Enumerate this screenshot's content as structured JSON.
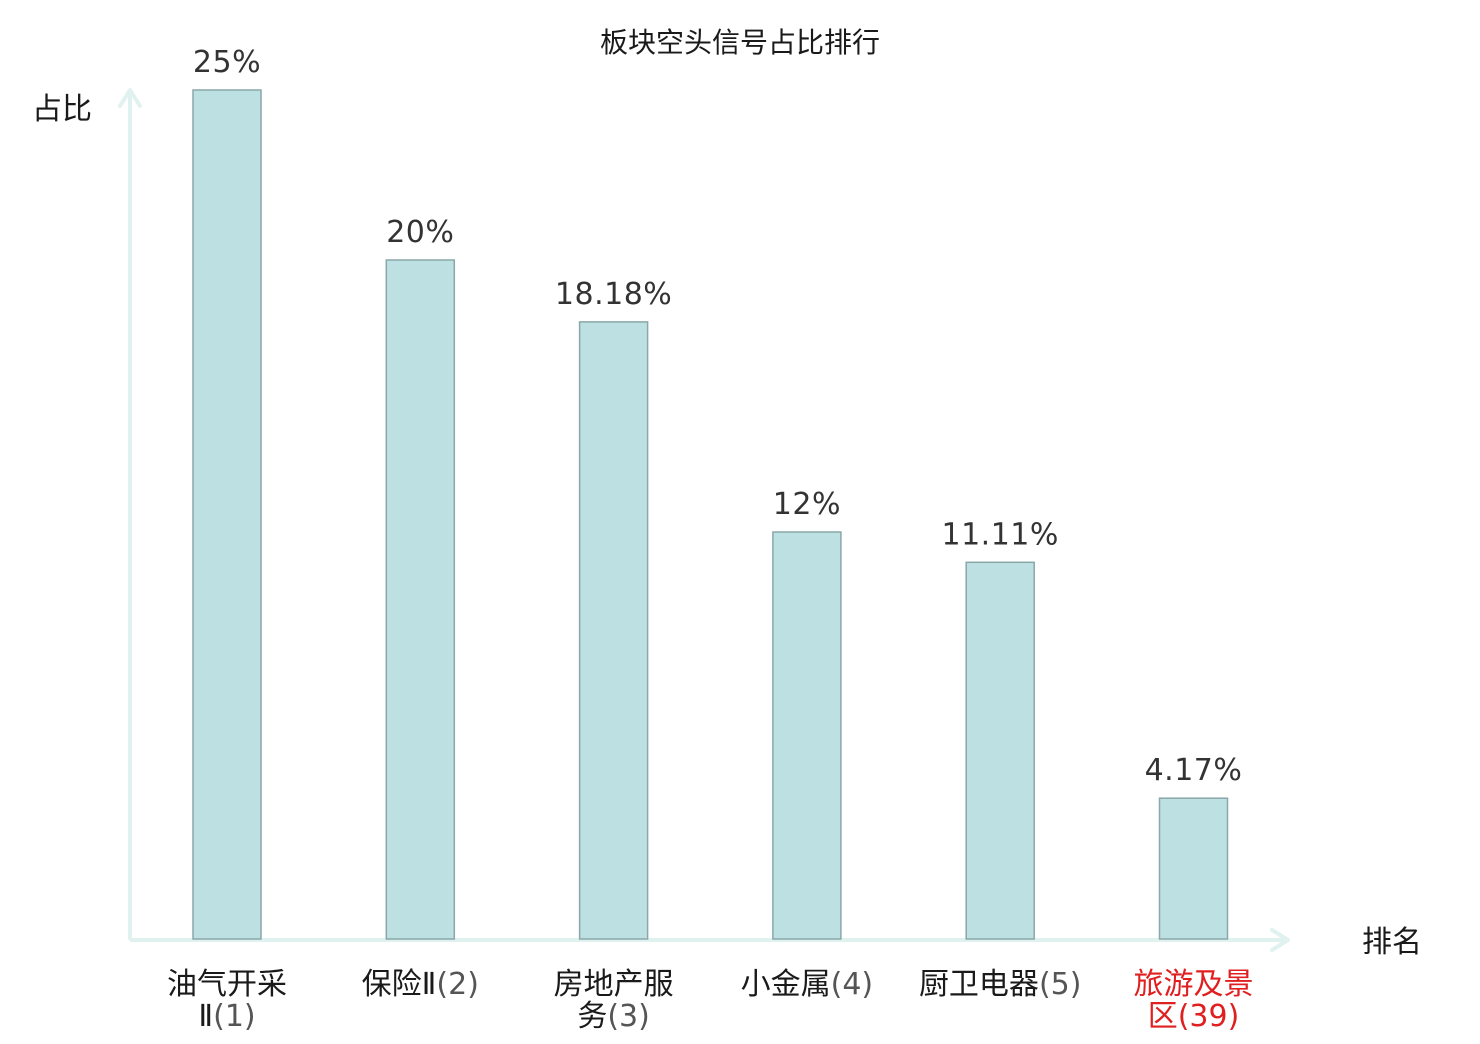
{
  "chart_data": {
    "type": "bar",
    "title": "板块空头信号占比排行",
    "xlabel": "排名",
    "ylabel": "占比",
    "ylim": [
      0,
      25
    ],
    "grid": false,
    "categories": [
      {
        "name_lines": [
          "油气开采",
          "Ⅱ"
        ],
        "rank": "(1)",
        "highlight": false
      },
      {
        "name_lines": [
          "保险Ⅱ"
        ],
        "rank": "(2)",
        "highlight": false
      },
      {
        "name_lines": [
          "房地产服",
          "务"
        ],
        "rank": "(3)",
        "highlight": false
      },
      {
        "name_lines": [
          "小金属"
        ],
        "rank": "(4)",
        "highlight": false
      },
      {
        "name_lines": [
          "厨卫电器"
        ],
        "rank": "(5)",
        "highlight": false
      },
      {
        "name_lines": [
          "旅游及景",
          "区"
        ],
        "rank": "(39)",
        "highlight": true
      }
    ],
    "values": [
      25,
      20,
      18.18,
      12,
      11.11,
      4.17
    ],
    "value_labels": [
      "25%",
      "20%",
      "18.18%",
      "12%",
      "11.11%",
      "4.17%"
    ]
  },
  "colors": {
    "bar_fill": "#bde0e2",
    "bar_stroke": "#8aa7a9",
    "axis": "#e0f2f0",
    "highlight_text": "#e02020",
    "text": "#1a1a1a",
    "value_text": "#333333",
    "rank_text": "#555555"
  }
}
